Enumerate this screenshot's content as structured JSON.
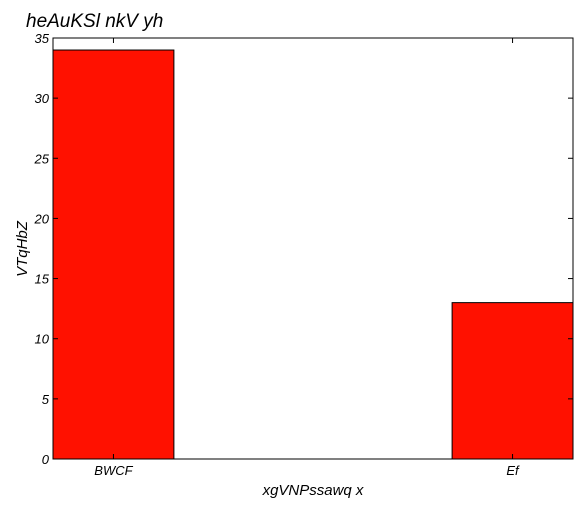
{
  "chart_data": {
    "type": "bar",
    "title": "heAuKSl nkV yh",
    "xlabel": "xgVNPssawq x",
    "ylabel": "VTqHbZ",
    "categories": [
      "BWCF",
      "Ef"
    ],
    "values": [
      34,
      13
    ],
    "ylim": [
      0,
      35
    ],
    "yticks": [
      0,
      5,
      10,
      15,
      20,
      25,
      30,
      35
    ],
    "grid": false,
    "legend": "none",
    "bar_color": "#ff1100",
    "edge_color": "#000000"
  }
}
